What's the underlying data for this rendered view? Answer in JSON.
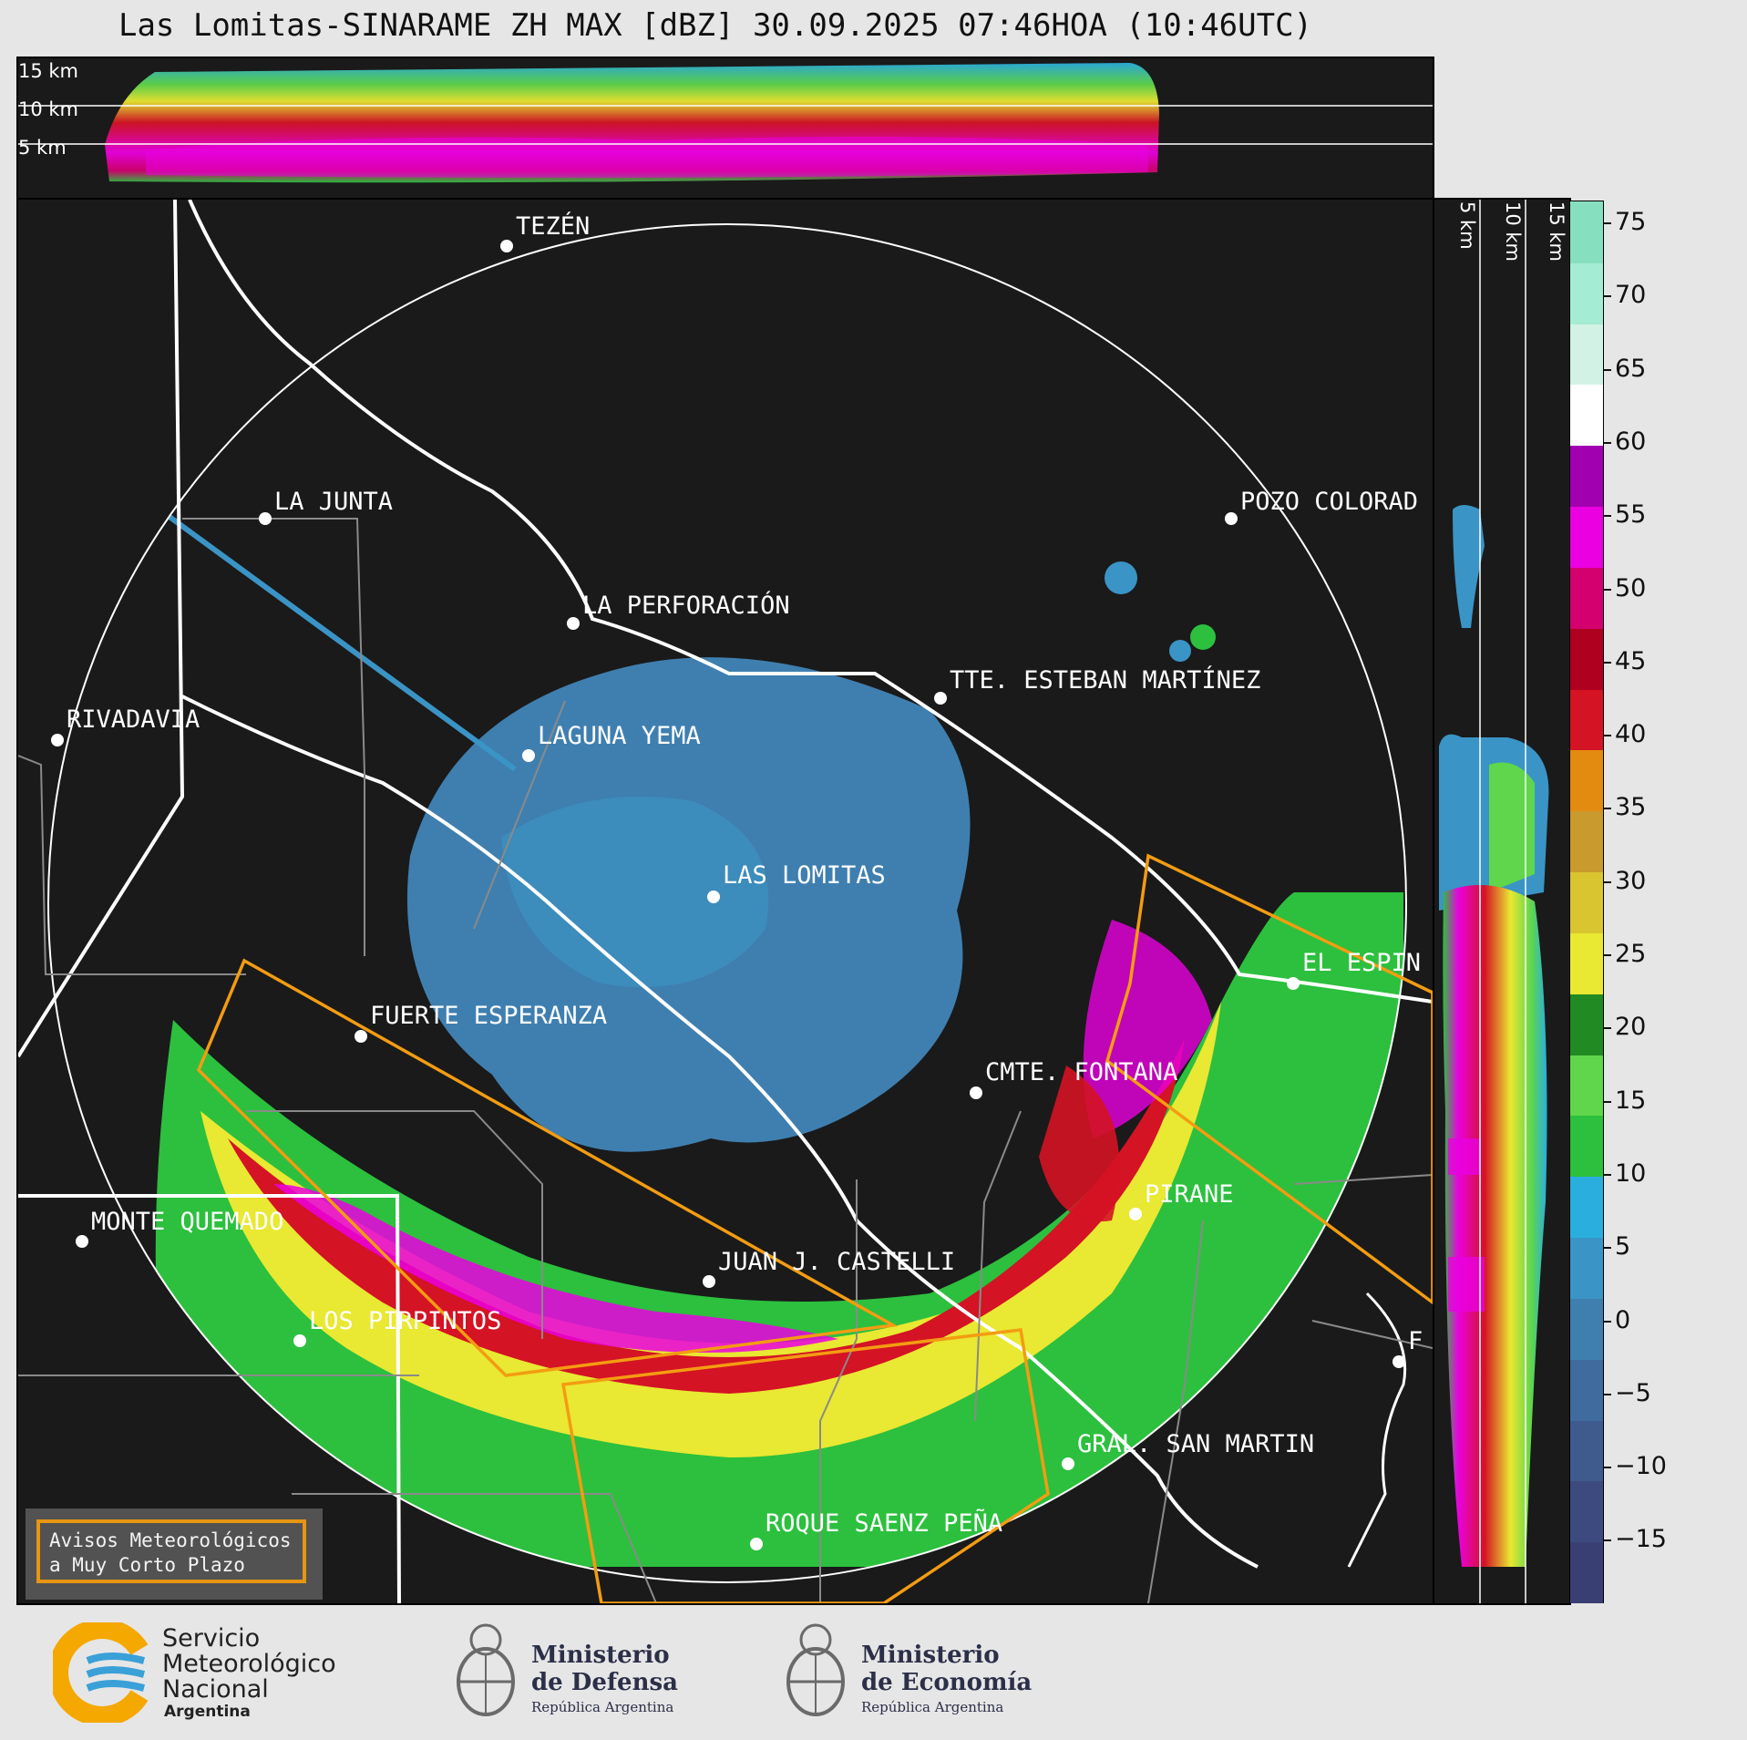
{
  "title": "Las Lomitas-SINARAME ZH MAX [dBZ] 30.09.2025 07:46HOA (10:46UTC)",
  "altitude_labels_top": [
    "15 km",
    "10 km",
    "5 km"
  ],
  "altitude_labels_side": [
    "5 km",
    "10 km",
    "15 km"
  ],
  "colorbar": {
    "ticks": [
      "75",
      "70",
      "65",
      "60",
      "55",
      "50",
      "45",
      "40",
      "35",
      "30",
      "25",
      "20",
      "15",
      "10",
      "5",
      "0",
      "−5",
      "−10",
      "−15"
    ],
    "colors": [
      "#3a3f73",
      "#3d4a80",
      "#3f5a8d",
      "#3f6b9e",
      "#3f7fb0",
      "#3a94c5",
      "#2aaede",
      "#2cc03e",
      "#5fd64b",
      "#228a22",
      "#e9e832",
      "#d9c52f",
      "#c99a2d",
      "#e38b10",
      "#d41324",
      "#b00020",
      "#d4006f",
      "#ea00e0",
      "#a000b0",
      "#ffffff",
      "#d3f2e6",
      "#a5ecd4",
      "#86e0c0"
    ]
  },
  "places": [
    {
      "name": "TEZÉN"
    },
    {
      "name": "LA JUNTA"
    },
    {
      "name": "POZO COLORAD"
    },
    {
      "name": "LA PERFORACIÓN"
    },
    {
      "name": "TTE. ESTEBAN MARTÍNEZ"
    },
    {
      "name": "RIVADAVIA"
    },
    {
      "name": "LAGUNA YEMA"
    },
    {
      "name": "LAS LOMITAS"
    },
    {
      "name": "EL ESPIN"
    },
    {
      "name": "FUERTE ESPERANZA"
    },
    {
      "name": "CMTE. FONTANA"
    },
    {
      "name": "PIRANE"
    },
    {
      "name": "MONTE QUEMADO"
    },
    {
      "name": "JUAN J. CASTELLI"
    },
    {
      "name": "LOS PIRPINTOS"
    },
    {
      "name": "GRAL. SAN MARTIN"
    },
    {
      "name": "ROQUE SAENZ PEÑA"
    },
    {
      "name": "F"
    }
  ],
  "warning_box": {
    "line1": "Avisos Meteorológicos",
    "line2": "a Muy Corto Plazo"
  },
  "logos": {
    "smn": {
      "line1": "Servicio",
      "line2": "Meteorológico",
      "line3": "Nacional",
      "line4": "Argentina"
    },
    "defensa": {
      "line1": "Ministerio",
      "line2": "de Defensa",
      "line3": "República Argentina"
    },
    "economia": {
      "line1": "Ministerio",
      "line2": "de Economía",
      "line3": "República Argentina"
    }
  }
}
